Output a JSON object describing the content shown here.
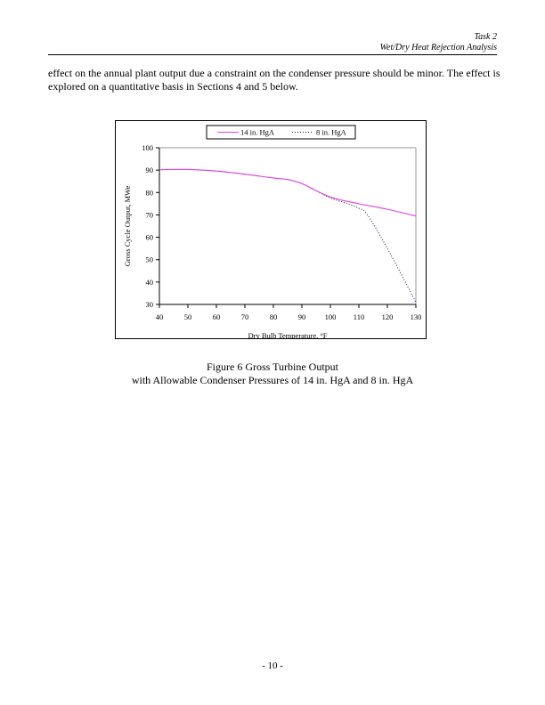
{
  "header": {
    "line1": "Task 2",
    "line2": "Wet/Dry Heat Rejection Analysis"
  },
  "body": {
    "paragraph": "effect on the annual plant output due a constraint on the condenser pressure should be minor.  The effect is explored on a quantitative basis in Sections 4 and 5 below."
  },
  "figure": {
    "caption_line1": "Figure 6  Gross Turbine Output",
    "caption_line2": "with Allowable Condenser Pressures of 14 in. HgA and 8 in. HgA"
  },
  "page_number": "- 10 -",
  "colors": {
    "series_14": "#e040e0",
    "series_8": "#1a1a4a",
    "axis": "#000000",
    "plot_border": "#999999"
  },
  "chart_data": {
    "type": "line",
    "title": "",
    "xlabel": "Dry Bulb Temperature, °F",
    "ylabel": "Gross Cycle Output, MWe",
    "xlim": [
      40,
      130
    ],
    "ylim": [
      30,
      100
    ],
    "xticks": [
      40,
      50,
      60,
      70,
      80,
      90,
      100,
      110,
      120,
      130
    ],
    "yticks": [
      30,
      40,
      50,
      60,
      70,
      80,
      90,
      100
    ],
    "grid": false,
    "legend_position": "top-center",
    "series": [
      {
        "name": "14 in. HgA",
        "style": "solid",
        "color": "#e040e0",
        "x": [
          40,
          50,
          60,
          70,
          80,
          85,
          90,
          95,
          100,
          105,
          110,
          120,
          130
        ],
        "y": [
          90.2,
          90.3,
          89.6,
          88.2,
          86.5,
          85.8,
          84.0,
          80.8,
          78.0,
          76.3,
          75.0,
          72.5,
          69.5
        ]
      },
      {
        "name": "8 in. HgA",
        "style": "dotted",
        "color": "#1a1a4a",
        "x": [
          40,
          50,
          60,
          70,
          80,
          85,
          90,
          95,
          100,
          105,
          110,
          113,
          120,
          130
        ],
        "y": [
          90.2,
          90.3,
          89.6,
          88.2,
          86.5,
          85.8,
          84.0,
          80.8,
          77.5,
          75.5,
          73.0,
          70.0,
          55.0,
          31.0
        ]
      }
    ]
  }
}
